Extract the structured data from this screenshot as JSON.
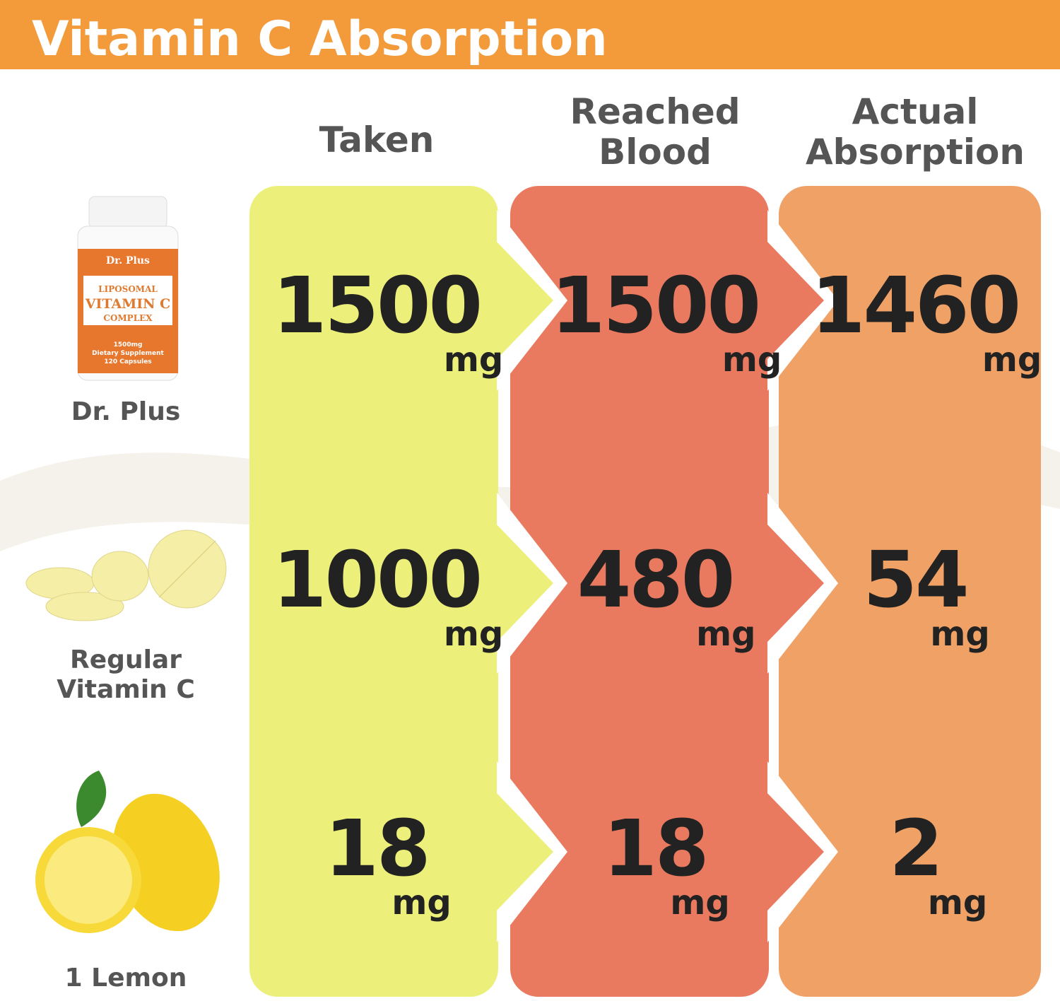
{
  "header": {
    "title": "Vitamin C Absorption"
  },
  "table": {
    "columns": [
      [
        "Taken"
      ],
      [
        "Reached",
        "Blood"
      ],
      [
        "Actual",
        "Absorption"
      ]
    ],
    "rows": [
      {
        "label": [
          "Dr. Plus"
        ],
        "cells": [
          {
            "value": 1500,
            "unit": "mg"
          },
          {
            "value": 1500,
            "unit": "mg"
          },
          {
            "value": 1460,
            "unit": "mg"
          }
        ]
      },
      {
        "label": [
          "Regular",
          "Vitamin C"
        ],
        "cells": [
          {
            "value": 1000,
            "unit": "mg"
          },
          {
            "value": 480,
            "unit": "mg"
          },
          {
            "value": 54,
            "unit": "mg"
          }
        ]
      },
      {
        "label": [
          "1 Lemon"
        ],
        "cells": [
          {
            "value": 18,
            "unit": "mg"
          },
          {
            "value": 18,
            "unit": "mg"
          },
          {
            "value": 2,
            "unit": "mg"
          }
        ]
      }
    ]
  },
  "product_label": {
    "brand": "Dr. Plus",
    "lines": [
      "LIPOSOMAL",
      "VITAMIN C",
      "COMPLEX"
    ],
    "details": [
      "1500mg",
      "Dietary Supplement",
      "120 Capsules"
    ]
  }
}
